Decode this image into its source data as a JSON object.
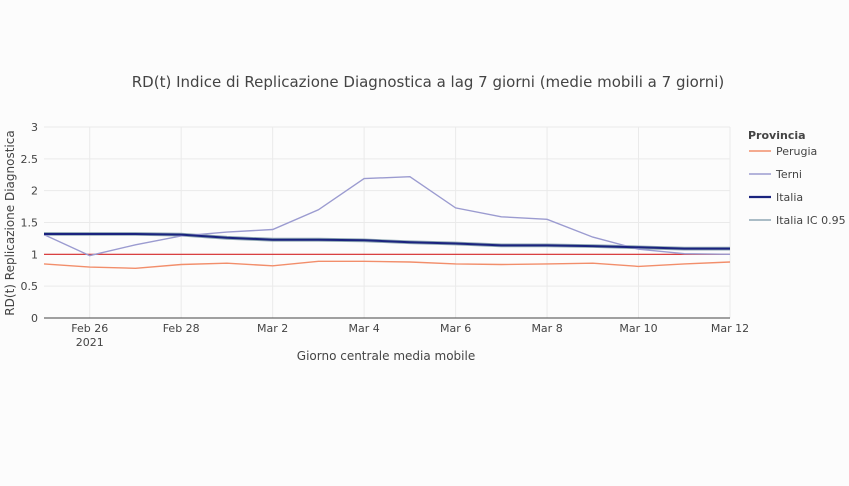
{
  "chart_data": {
    "type": "line",
    "title": "RD(t) Indice di Replicazione Diagnostica a lag 7 giorni (medie mobili a 7 giorni)",
    "xlabel": "Giorno centrale media mobile",
    "ylabel": "RD(t) Replicazione Diagnostica",
    "ylim": [
      0,
      3
    ],
    "y_ticks": [
      "0",
      "0.5",
      "1",
      "1.5",
      "2",
      "2.5",
      "3"
    ],
    "x_ticks": [
      {
        "date": "2021-02-26",
        "label": "Feb 26",
        "sublabel": "2021"
      },
      {
        "date": "2021-02-28",
        "label": "Feb 28",
        "sublabel": ""
      },
      {
        "date": "2021-03-02",
        "label": "Mar 2",
        "sublabel": ""
      },
      {
        "date": "2021-03-04",
        "label": "Mar 4",
        "sublabel": ""
      },
      {
        "date": "2021-03-06",
        "label": "Mar 6",
        "sublabel": ""
      },
      {
        "date": "2021-03-08",
        "label": "Mar 8",
        "sublabel": ""
      },
      {
        "date": "2021-03-10",
        "label": "Mar 10",
        "sublabel": ""
      },
      {
        "date": "2021-03-12",
        "label": "Mar 12",
        "sublabel": ""
      }
    ],
    "x": [
      "2021-02-25",
      "2021-02-26",
      "2021-02-27",
      "2021-02-28",
      "2021-03-01",
      "2021-03-02",
      "2021-03-03",
      "2021-03-04",
      "2021-03-05",
      "2021-03-06",
      "2021-03-07",
      "2021-03-08",
      "2021-03-09",
      "2021-03-10",
      "2021-03-11",
      "2021-03-12"
    ],
    "xlim": [
      "2021-02-25",
      "2021-03-12"
    ],
    "grid": true,
    "legend_title": "Provincia",
    "legend_position": "right",
    "reference_line": {
      "y": 1,
      "color": "#d62728"
    },
    "series": [
      {
        "name": "Perugia",
        "color": "#f28e6b",
        "values": [
          0.85,
          0.8,
          0.78,
          0.84,
          0.86,
          0.82,
          0.89,
          0.89,
          0.88,
          0.85,
          0.84,
          0.85,
          0.86,
          0.81,
          0.85,
          0.88
        ]
      },
      {
        "name": "Terni",
        "color": "#9b9bd0",
        "values": [
          1.31,
          0.98,
          1.15,
          1.29,
          1.35,
          1.39,
          1.7,
          2.19,
          2.22,
          1.73,
          1.59,
          1.55,
          1.27,
          1.08,
          1.01,
          1.0
        ]
      },
      {
        "name": "Italia",
        "color": "#1a237e",
        "values": [
          1.32,
          1.32,
          1.32,
          1.31,
          1.26,
          1.23,
          1.23,
          1.22,
          1.19,
          1.17,
          1.14,
          1.14,
          1.13,
          1.11,
          1.09,
          1.09
        ]
      },
      {
        "name": "Italia IC 0.95",
        "color": "#8fa7b3",
        "lower": [
          1.3,
          1.3,
          1.3,
          1.29,
          1.24,
          1.21,
          1.21,
          1.2,
          1.17,
          1.15,
          1.12,
          1.12,
          1.11,
          1.09,
          1.07,
          1.07
        ],
        "upper": [
          1.34,
          1.34,
          1.34,
          1.33,
          1.28,
          1.25,
          1.25,
          1.24,
          1.21,
          1.19,
          1.16,
          1.16,
          1.15,
          1.13,
          1.11,
          1.11
        ]
      }
    ]
  }
}
